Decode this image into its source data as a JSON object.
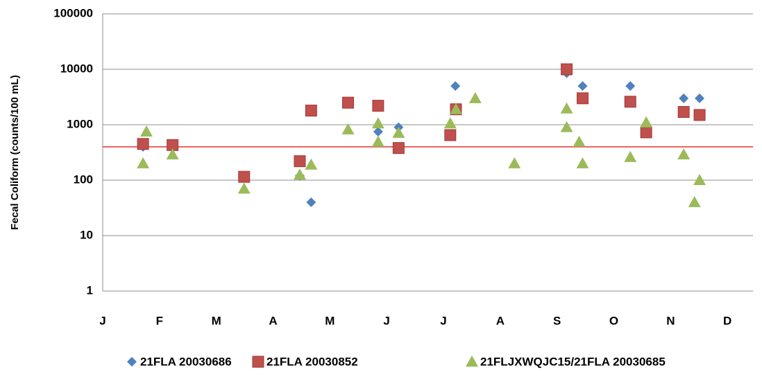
{
  "chart_data": {
    "type": "scatter",
    "ylabel": "Fecal Coliform (counts/100 mL)",
    "ylog": true,
    "grid": true,
    "ylim": [
      1,
      100000
    ],
    "yticks": [
      1,
      10,
      100,
      1000,
      10000,
      100000
    ],
    "xlim": [
      0,
      11.45
    ],
    "xticks": [
      {
        "value": 0,
        "label": "J"
      },
      {
        "value": 1,
        "label": "F"
      },
      {
        "value": 2,
        "label": "M"
      },
      {
        "value": 3,
        "label": "A"
      },
      {
        "value": 4,
        "label": "M"
      },
      {
        "value": 5,
        "label": "J"
      },
      {
        "value": 6,
        "label": "J"
      },
      {
        "value": 7,
        "label": "A"
      },
      {
        "value": 8,
        "label": "S"
      },
      {
        "value": 9,
        "label": "O"
      },
      {
        "value": 10,
        "label": "N"
      },
      {
        "value": 11,
        "label": "D"
      }
    ],
    "reference_line": {
      "value": 400,
      "color": "#e8312f"
    },
    "legend": "bottom",
    "series": [
      {
        "name": "21FLA 20030686",
        "color": "#4f81bd",
        "marker": "diamond",
        "x": [
          0.71,
          3.47,
          3.67,
          4.85,
          5.21,
          6.21,
          8.17,
          8.45,
          9.29,
          10.23,
          10.51
        ],
        "values": [
          400,
          120,
          40,
          750,
          900,
          5000,
          8500,
          5000,
          5000,
          3000,
          3000
        ]
      },
      {
        "name": "21FLA 20030852",
        "color": "#c0504d",
        "marker": "square",
        "x": [
          0.71,
          1.23,
          2.49,
          3.47,
          3.67,
          4.32,
          4.85,
          5.21,
          6.12,
          6.22,
          8.17,
          8.45,
          9.29,
          9.57,
          10.23,
          10.51
        ],
        "values": [
          450,
          430,
          115,
          220,
          1800,
          2500,
          2200,
          380,
          650,
          1900,
          10000,
          3000,
          2600,
          730,
          1700,
          1500
        ]
      },
      {
        "name": "21FLJXWQJC15/21FLA 20030685",
        "color": "#9bbb59",
        "marker": "triangle",
        "x": [
          0.71,
          0.77,
          1.23,
          2.49,
          3.47,
          3.67,
          4.32,
          4.85,
          4.85,
          5.21,
          6.12,
          6.22,
          6.56,
          7.25,
          8.17,
          8.17,
          8.39,
          8.45,
          9.29,
          9.57,
          10.23,
          10.42,
          10.51
        ],
        "values": [
          200,
          750,
          290,
          70,
          125,
          190,
          820,
          490,
          1050,
          710,
          1050,
          1900,
          3000,
          200,
          1950,
          900,
          490,
          200,
          260,
          1100,
          290,
          40,
          100
        ]
      }
    ]
  }
}
